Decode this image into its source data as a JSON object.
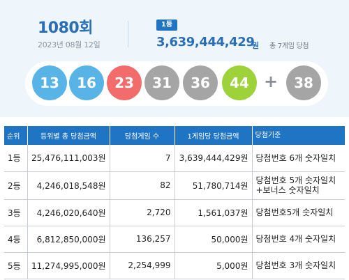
{
  "draw": {
    "round": "1080회",
    "date": "2023년 08월 12일",
    "first_rank_badge": "1등",
    "first_prize_amount": "3,639,444,429",
    "first_prize_unit": "원",
    "first_winner_count": "총 7게임 당첨"
  },
  "balls": {
    "numbers": [
      "13",
      "16",
      "23",
      "31",
      "36",
      "44"
    ],
    "plus": "+",
    "bonus": "38",
    "colors": [
      "#58b4e6",
      "#58b4e6",
      "#f26c6c",
      "#a5a5a5",
      "#a5a5a5",
      "#9ed23a",
      "#a5a5a5"
    ]
  },
  "table": {
    "headers": [
      "순위",
      "등위별 총 당첨금액",
      "당첨게임 수",
      "1게임당 당첨금액",
      "당첨기준"
    ],
    "rows": [
      {
        "rank": "1등",
        "total": "25,476,111,003원",
        "games": "7",
        "per_game": "3,639,444,429원",
        "criteria": [
          "당첨번호 6개 숫자일치"
        ]
      },
      {
        "rank": "2등",
        "total": "4,246,018,548원",
        "games": "82",
        "per_game": "51,780,714원",
        "criteria": [
          "당첨번호 5개 숫자일치",
          "+보너스 숫자일치"
        ]
      },
      {
        "rank": "3등",
        "total": "4,246,020,640원",
        "games": "2,720",
        "per_game": "1,561,037원",
        "criteria": [
          "당첨번호5개 숫자일치"
        ]
      },
      {
        "rank": "4등",
        "total": "6,812,850,000원",
        "games": "136,257",
        "per_game": "50,000원",
        "criteria": [
          "당첨번호 4개 숫자일치"
        ]
      },
      {
        "rank": "5등",
        "total": "11,274,995,000원",
        "games": "2,254,999",
        "per_game": "5,000원",
        "criteria": [
          "당첨번호 3개 숫자일치"
        ]
      }
    ]
  }
}
